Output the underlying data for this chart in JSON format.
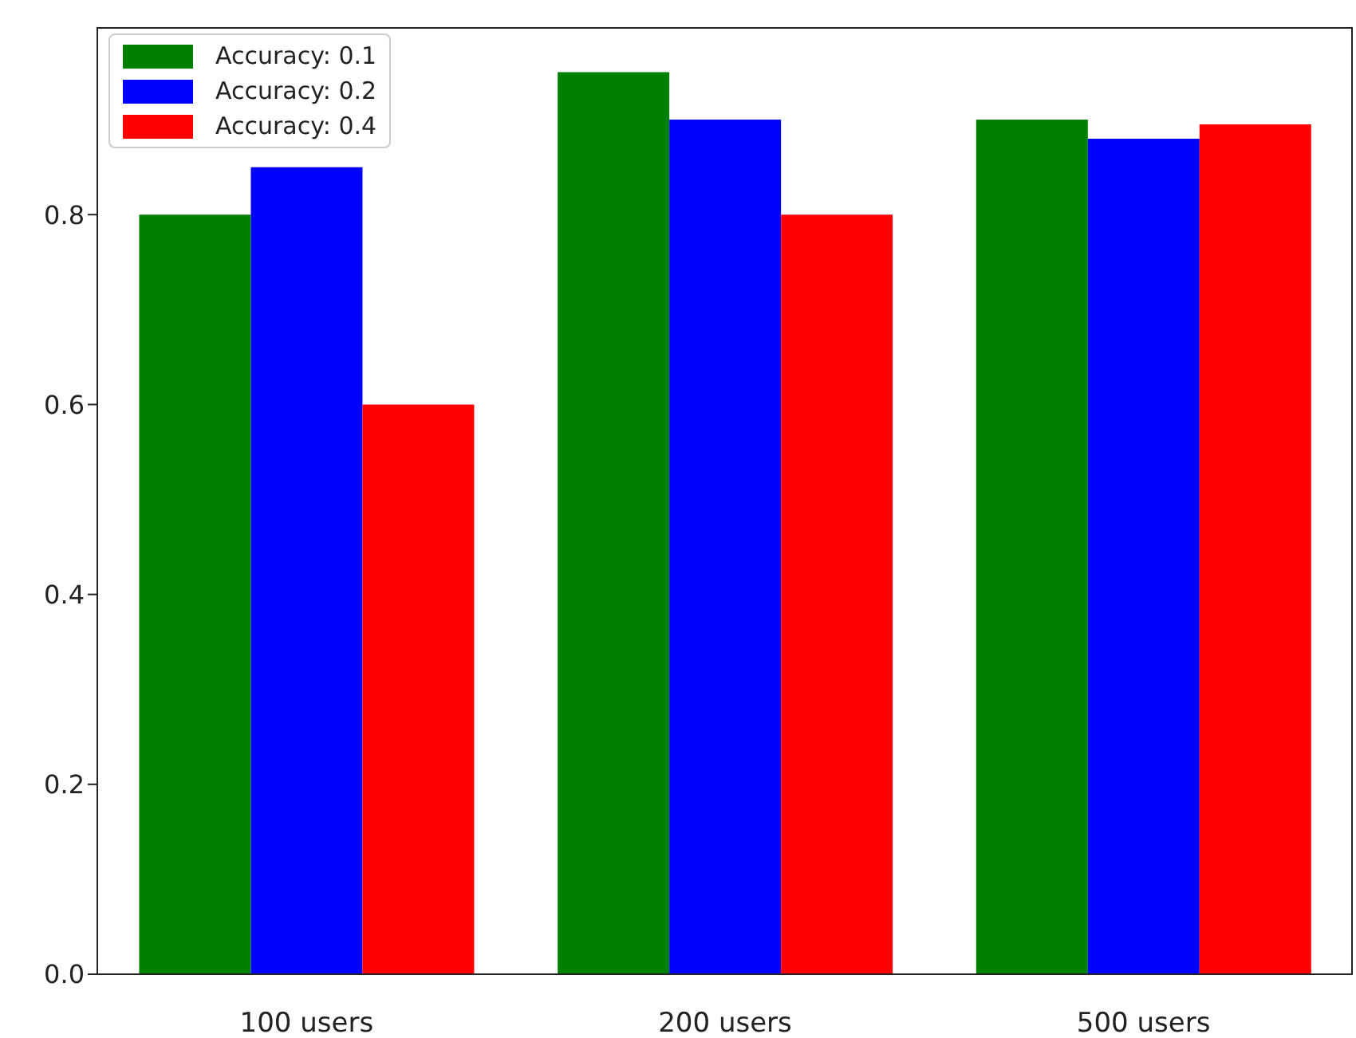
{
  "chart_data": {
    "type": "bar",
    "categories": [
      "100 users",
      "200 users",
      "500 users"
    ],
    "series": [
      {
        "name": "Accuracy: 0.1",
        "color": "#008000",
        "values": [
          0.8,
          0.95,
          0.9
        ]
      },
      {
        "name": "Accuracy: 0.2",
        "color": "#0000ff",
        "values": [
          0.85,
          0.9,
          0.88
        ]
      },
      {
        "name": "Accuracy: 0.4",
        "color": "#ff0000",
        "values": [
          0.6,
          0.8,
          0.895
        ]
      }
    ],
    "ylim": [
      0,
      0.9975
    ],
    "yticks": [
      {
        "value": 0,
        "label": "0.0"
      },
      0.2,
      0.4,
      0.6,
      0.8
    ],
    "legend": "top left"
  }
}
